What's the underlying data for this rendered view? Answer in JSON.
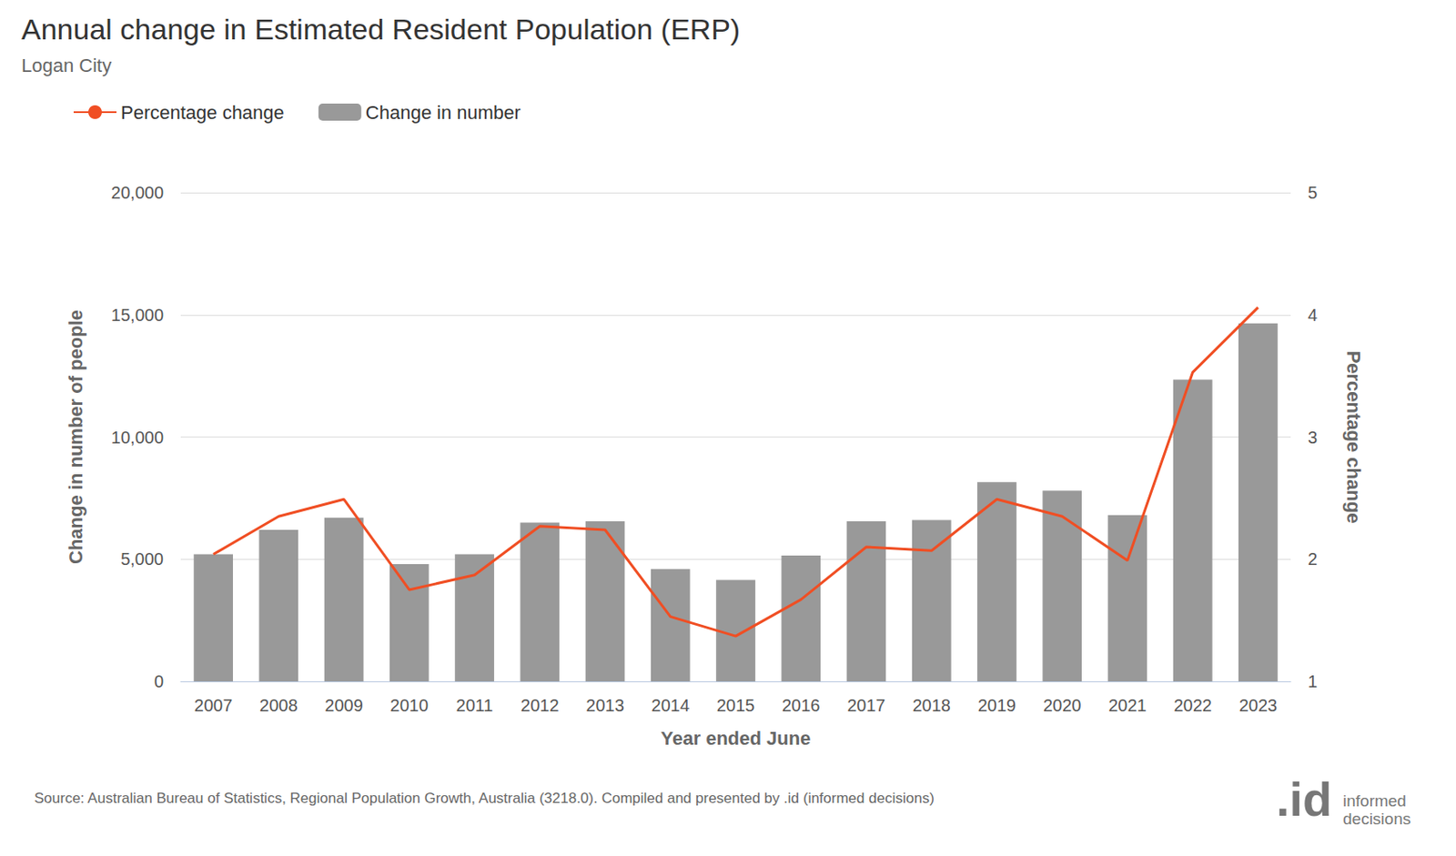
{
  "chart_data": {
    "type": "bar",
    "title": "Annual change in Estimated Resident Population (ERP)",
    "subtitle": "Logan City",
    "x_label": "Year ended June",
    "y_label": "Change in number of people",
    "y2_label": "Percentage change",
    "source": "Source: Australian Bureau of Statistics, Regional Population Growth, Australia (3218.0). Compiled and presented by .id (informed decisions)",
    "logo": ".id",
    "logo_text": [
      "informed",
      "decisions"
    ],
    "categories": [
      "2007",
      "2008",
      "2009",
      "2010",
      "2011",
      "2012",
      "2013",
      "2014",
      "2015",
      "2016",
      "2017",
      "2018",
      "2019",
      "2020",
      "2021",
      "2022",
      "2023"
    ],
    "series": [
      {
        "name": "Percentage change",
        "type": "line",
        "axis": "y2",
        "color": "#f04e23",
        "values": [
          2.04,
          2.35,
          2.49,
          1.75,
          1.87,
          2.27,
          2.24,
          1.53,
          1.37,
          1.67,
          2.1,
          2.07,
          2.49,
          2.35,
          1.99,
          3.53,
          4.06
        ]
      },
      {
        "name": "Change in number",
        "type": "bar",
        "axis": "y",
        "color": "#999999",
        "values": [
          5200,
          6200,
          6700,
          4800,
          5200,
          6500,
          6550,
          4600,
          4150,
          5150,
          6550,
          6600,
          8150,
          7800,
          6800,
          12350,
          14650
        ]
      }
    ],
    "ylim": [
      0,
      20000
    ],
    "yticks": [
      0,
      {
        "value": 5000,
        "label": "5,000"
      },
      {
        "value": 10000,
        "label": "10,000"
      },
      {
        "value": 15000,
        "label": "15,000"
      },
      {
        "value": 20000,
        "label": "20,000"
      }
    ],
    "y2lim": [
      1,
      5
    ],
    "y2ticks": [
      1,
      2,
      3,
      4,
      5
    ],
    "grid": true,
    "legend": "top-left"
  }
}
